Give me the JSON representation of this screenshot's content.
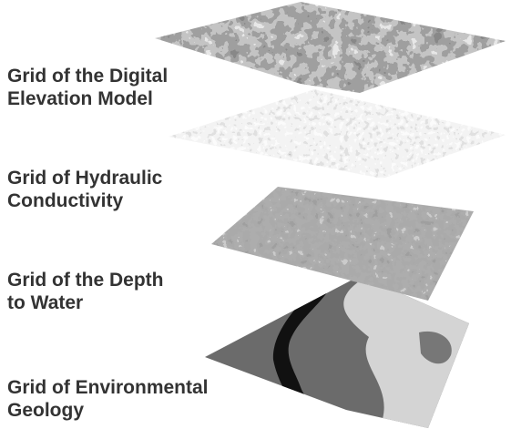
{
  "layers": [
    {
      "lines": [
        "Grid of the Digital",
        "Elevation Model"
      ]
    },
    {
      "lines": [
        "Grid of Hydraulic",
        "Conductivity"
      ]
    },
    {
      "lines": [
        "Grid of the Depth",
        "to Water"
      ]
    },
    {
      "lines": [
        "Grid of Environmental",
        "Geology"
      ]
    }
  ]
}
